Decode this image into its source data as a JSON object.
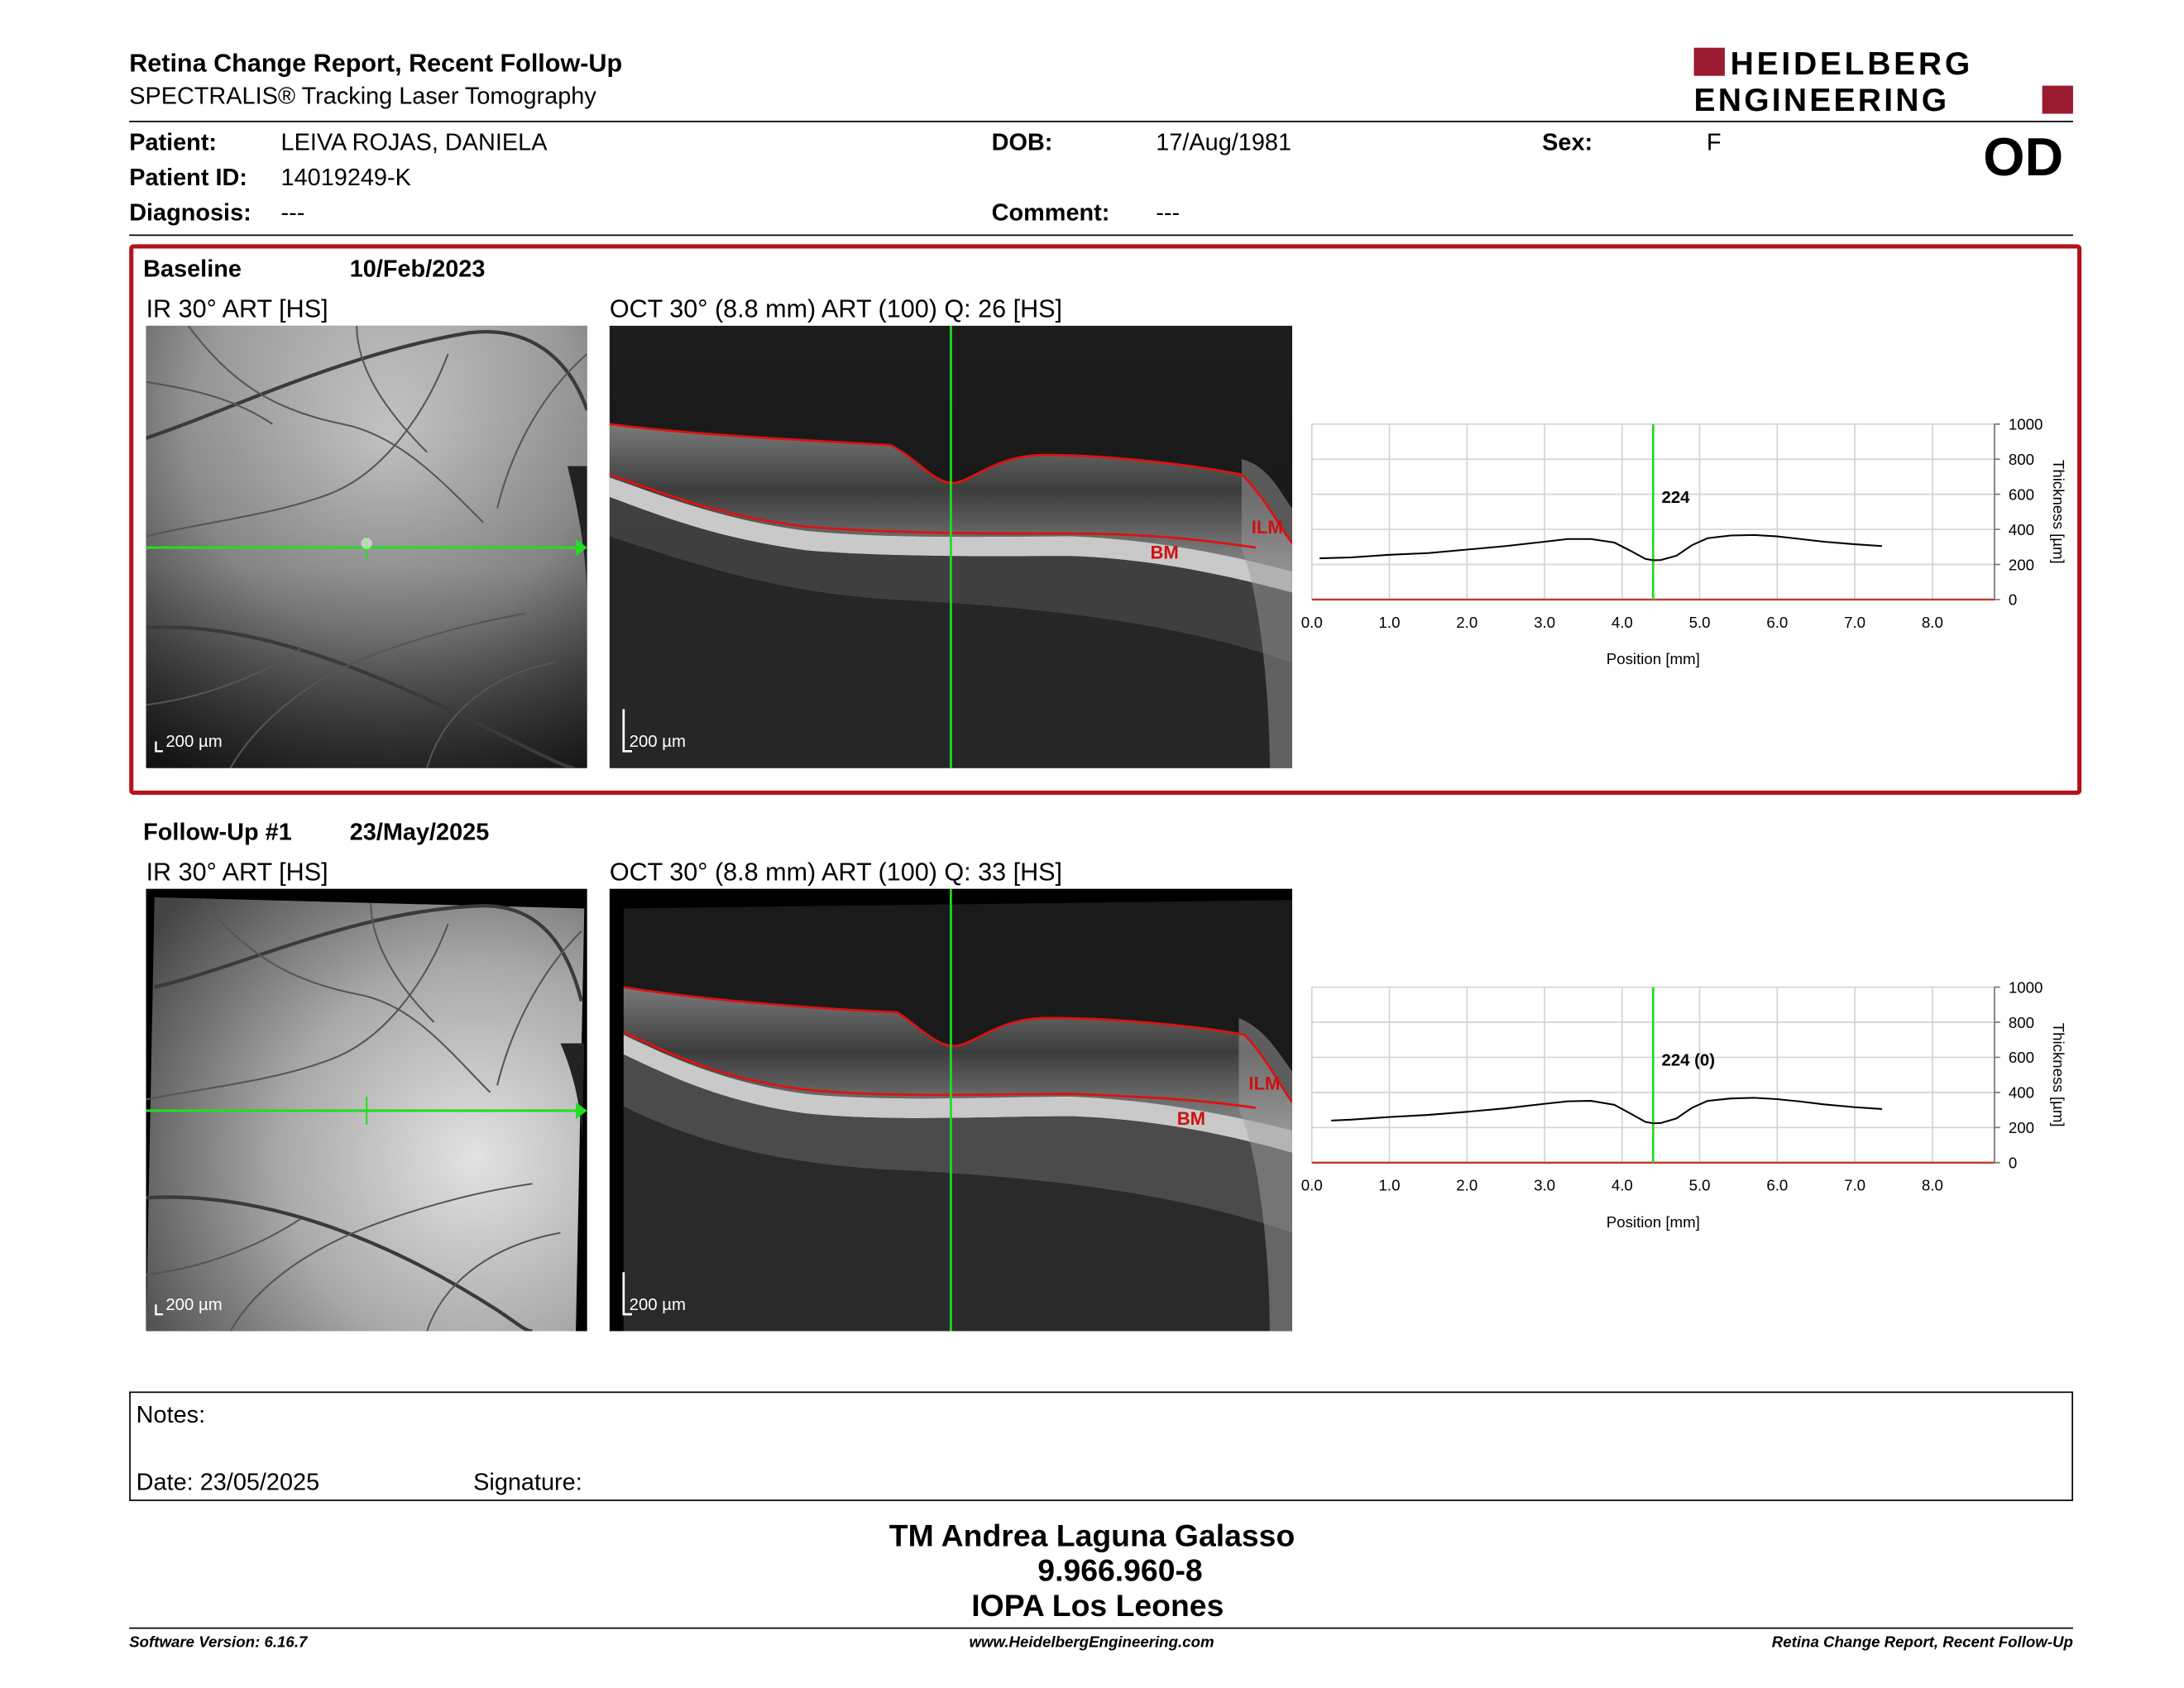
{
  "header": {
    "title": "Retina Change Report, Recent Follow-Up",
    "subtitle": "SPECTRALIS® Tracking Laser Tomography",
    "logo_line1": "HEIDELBERG",
    "logo_line2": "ENGINEERING"
  },
  "patient": {
    "patient_label": "Patient:",
    "patient_value": "LEIVA ROJAS, DANIELA",
    "id_label": "Patient ID:",
    "id_value": "14019249-K",
    "diagnosis_label": "Diagnosis:",
    "diagnosis_value": "---",
    "dob_label": "DOB:",
    "dob_value": "17/Aug/1981",
    "comment_label": "Comment:",
    "comment_value": "---",
    "sex_label": "Sex:",
    "sex_value": "F",
    "eye": "OD"
  },
  "baseline": {
    "label": "Baseline",
    "date": "10/Feb/2023",
    "ir_title": "IR 30° ART [HS]",
    "oct_title": "OCT 30° (8.8 mm) ART (100) Q: 26 [HS]",
    "ir_scale": "200 µm",
    "oct_scale": "200 µm",
    "ilm_label": "ILM",
    "bm_label": "BM"
  },
  "followup": {
    "label": "Follow-Up #1",
    "date": "23/May/2025",
    "ir_title": "IR 30° ART [HS]",
    "oct_title": "OCT 30° (8.8 mm) ART (100) Q: 33 [HS]",
    "ir_scale": "200 µm",
    "oct_scale": "200 µm",
    "ilm_label": "ILM",
    "bm_label": "BM"
  },
  "chart_data": [
    {
      "type": "line",
      "xlabel": "Position [mm]",
      "ylabel": "Thickness [µm]",
      "xlim": [
        0,
        8.8
      ],
      "ylim": [
        0,
        1000
      ],
      "xticks": [
        "0.0",
        "1.0",
        "2.0",
        "3.0",
        "4.0",
        "5.0",
        "6.0",
        "7.0",
        "8.0"
      ],
      "yticks": [
        "0",
        "200",
        "400",
        "600",
        "800",
        "1000"
      ],
      "cursor_x": 4.4,
      "cursor_label": "224",
      "grid": true,
      "series": [
        {
          "x": [
            0.1,
            0.5,
            1.0,
            1.5,
            2.0,
            2.5,
            3.0,
            3.3,
            3.6,
            3.9,
            4.1,
            4.3,
            4.4,
            4.5,
            4.7,
            4.9,
            5.1,
            5.4,
            5.7,
            6.0,
            6.3,
            6.6,
            7.0,
            7.35
          ],
          "values": [
            235,
            240,
            255,
            265,
            285,
            305,
            330,
            345,
            345,
            325,
            280,
            232,
            224,
            226,
            250,
            310,
            350,
            365,
            368,
            360,
            345,
            330,
            315,
            305
          ]
        }
      ]
    },
    {
      "type": "line",
      "xlabel": "Position [mm]",
      "ylabel": "Thickness [µm]",
      "xlim": [
        0,
        8.8
      ],
      "ylim": [
        0,
        1000
      ],
      "xticks": [
        "0.0",
        "1.0",
        "2.0",
        "3.0",
        "4.0",
        "5.0",
        "6.0",
        "7.0",
        "8.0"
      ],
      "yticks": [
        "0",
        "200",
        "400",
        "600",
        "800",
        "1000"
      ],
      "cursor_x": 4.4,
      "cursor_label": "224 (0)",
      "grid": true,
      "series": [
        {
          "x": [
            0.25,
            0.5,
            1.0,
            1.5,
            2.0,
            2.5,
            3.0,
            3.3,
            3.6,
            3.9,
            4.1,
            4.3,
            4.4,
            4.5,
            4.7,
            4.9,
            5.1,
            5.4,
            5.7,
            6.0,
            6.3,
            6.6,
            7.0,
            7.35
          ],
          "values": [
            240,
            245,
            260,
            272,
            290,
            310,
            335,
            350,
            352,
            330,
            282,
            232,
            224,
            226,
            252,
            312,
            352,
            366,
            370,
            362,
            348,
            332,
            316,
            306
          ]
        }
      ]
    }
  ],
  "notes": {
    "notes_label": "Notes:",
    "date_label": "Date: 23/05/2025",
    "signature_label": "Signature:"
  },
  "signature": {
    "name": "TM Andrea Laguna Galasso",
    "id": "9.966.960-8",
    "org": "IOPA Los Leones"
  },
  "footer": {
    "software": "Software Version: 6.16.7",
    "website": "www.HeidelbergEngineering.com",
    "report": "Retina Change Report, Recent Follow-Up"
  },
  "colors": {
    "brand_red": "#9b1b30",
    "box_red": "#b5121b",
    "cursor_green": "#22dd22",
    "seg_red": "#e01010"
  }
}
